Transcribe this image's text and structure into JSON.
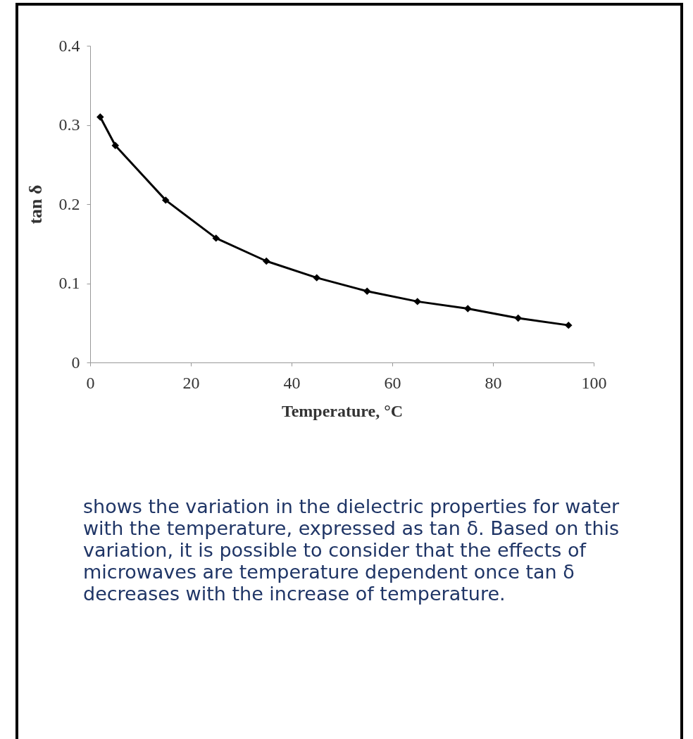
{
  "chart_data": {
    "type": "line",
    "xlabel": "Temperature, °C",
    "ylabel": "tan δ",
    "x": [
      2,
      5,
      15,
      25,
      35,
      45,
      55,
      65,
      75,
      85,
      95
    ],
    "series": [
      {
        "color": "#000000",
        "values": [
          0.31,
          0.274,
          0.205,
          0.157,
          0.128,
          0.107,
          0.09,
          0.077,
          0.068,
          0.056,
          0.047
        ]
      }
    ],
    "xlim": [
      0,
      100
    ],
    "xticks": [
      0,
      20,
      40,
      60,
      80,
      100
    ],
    "ylim": [
      0,
      0.4
    ],
    "yticks": [
      0,
      0.1,
      0.2,
      0.3,
      0.4
    ],
    "grid": false,
    "legend": false,
    "marker": "diamond",
    "line_style": "solid",
    "annotations": [
      "shows the variation in the dielectric properties for water with the temperature, expressed as tan δ. Based on this variation, it is possible to consider that the effects of microwaves are temperature dependent once tan δ decreases with the increase of temperature."
    ]
  }
}
